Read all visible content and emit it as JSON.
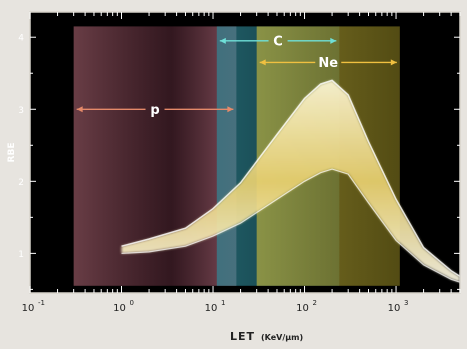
{
  "chart_data": {
    "type": "area",
    "xscale": "log",
    "xlabel": "LET",
    "xunit": "(KeV/μm)",
    "ylabel": "RBE",
    "xlim": [
      0.1,
      5000
    ],
    "ylim": [
      0.45,
      4.35
    ],
    "xticks": [
      {
        "value": 0.1,
        "label": "10",
        "exp": "-1"
      },
      {
        "value": 1,
        "label": "10",
        "exp": "0"
      },
      {
        "value": 10,
        "label": "10",
        "exp": "1"
      },
      {
        "value": 100,
        "label": "10",
        "exp": "2"
      },
      {
        "value": 1000,
        "label": "10",
        "exp": "3"
      }
    ],
    "yticks": [
      1,
      2,
      3,
      4
    ],
    "grid": false,
    "regions": [
      {
        "label": "p",
        "x_range": [
          0.3,
          18
        ],
        "y_range": [
          0.55,
          4.15
        ],
        "color": "#8a4e5c",
        "arrow_x": [
          0.3,
          18
        ],
        "arrow_y": 3.0,
        "arrow_color": "#e58a6a"
      },
      {
        "label": "C",
        "x_range": [
          11,
          240
        ],
        "y_range": [
          0.55,
          4.15
        ],
        "color": "#2f7d8a",
        "arrow_x": [
          11,
          240
        ],
        "arrow_y": 3.95,
        "arrow_color": "#6fe0d8"
      },
      {
        "label": "Ne",
        "x_range": [
          30,
          1100
        ],
        "y_range": [
          0.55,
          4.15
        ],
        "color": "#b3a634",
        "arrow_x": [
          30,
          1100
        ],
        "arrow_y": 3.65,
        "arrow_color": "#f0c040"
      }
    ],
    "band": {
      "x": [
        1.0,
        2.0,
        5.0,
        10,
        20,
        50,
        100,
        150,
        200,
        300,
        500,
        1000,
        2000,
        4000,
        5000
      ],
      "upper": [
        1.1,
        1.2,
        1.35,
        1.62,
        1.98,
        2.65,
        3.15,
        3.35,
        3.4,
        3.2,
        2.55,
        1.75,
        1.08,
        0.76,
        0.68
      ],
      "lower": [
        1.0,
        1.02,
        1.1,
        1.24,
        1.42,
        1.75,
        2.0,
        2.12,
        2.17,
        2.1,
        1.7,
        1.18,
        0.84,
        0.64,
        0.6
      ],
      "color": "#f4f0c8"
    }
  }
}
